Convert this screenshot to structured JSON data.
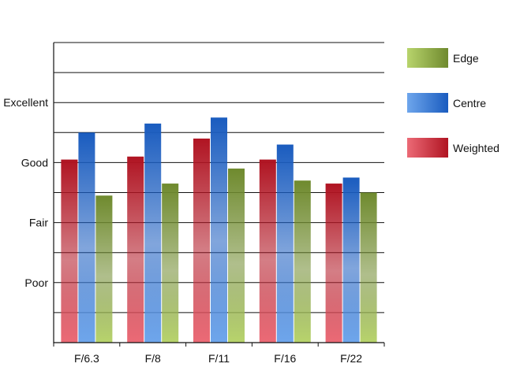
{
  "chart_data": {
    "type": "bar",
    "title": "",
    "xlabel": "",
    "ylabel": "",
    "categories": [
      "F/6.3",
      "F/8",
      "F/11",
      "F/16",
      "F/22"
    ],
    "y_tick_labels": [
      "Poor",
      "Fair",
      "Good",
      "Excellent"
    ],
    "y_tick_values": [
      2,
      4,
      6,
      8
    ],
    "ylim": [
      0,
      10
    ],
    "grid": true,
    "legend_position": "right",
    "legend_order": [
      "Edge",
      "Centre",
      "Weighted"
    ],
    "series": [
      {
        "name": "Weighted",
        "values": [
          6.1,
          6.2,
          6.8,
          6.1,
          5.3
        ],
        "color_light": "#ec6a76",
        "color_dark": "#b01422"
      },
      {
        "name": "Centre",
        "values": [
          7.0,
          7.3,
          7.5,
          6.6,
          5.5
        ],
        "color_light": "#6ea6ec",
        "color_dark": "#1a5cbf"
      },
      {
        "name": "Edge",
        "values": [
          4.9,
          5.3,
          5.8,
          5.4,
          5.0
        ],
        "color_light": "#b8d46c",
        "color_dark": "#6f8a2e"
      }
    ]
  }
}
